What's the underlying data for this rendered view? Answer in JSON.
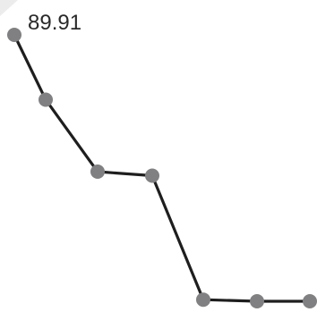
{
  "colors": {
    "line": "#1e1e1e",
    "marker": "#808082",
    "background": "#ffffff",
    "corner": "#ececec"
  },
  "chart_data": {
    "type": "line",
    "x": [
      0,
      1,
      2,
      3,
      4,
      5,
      6
    ],
    "series": [
      {
        "values": [
          89.91,
          89.1,
          88.2,
          88.15,
          86.6,
          86.58,
          86.58
        ]
      }
    ],
    "data_labels": [
      {
        "point_index": 0,
        "text": "89.91"
      }
    ],
    "grid": false,
    "legend": "none"
  }
}
